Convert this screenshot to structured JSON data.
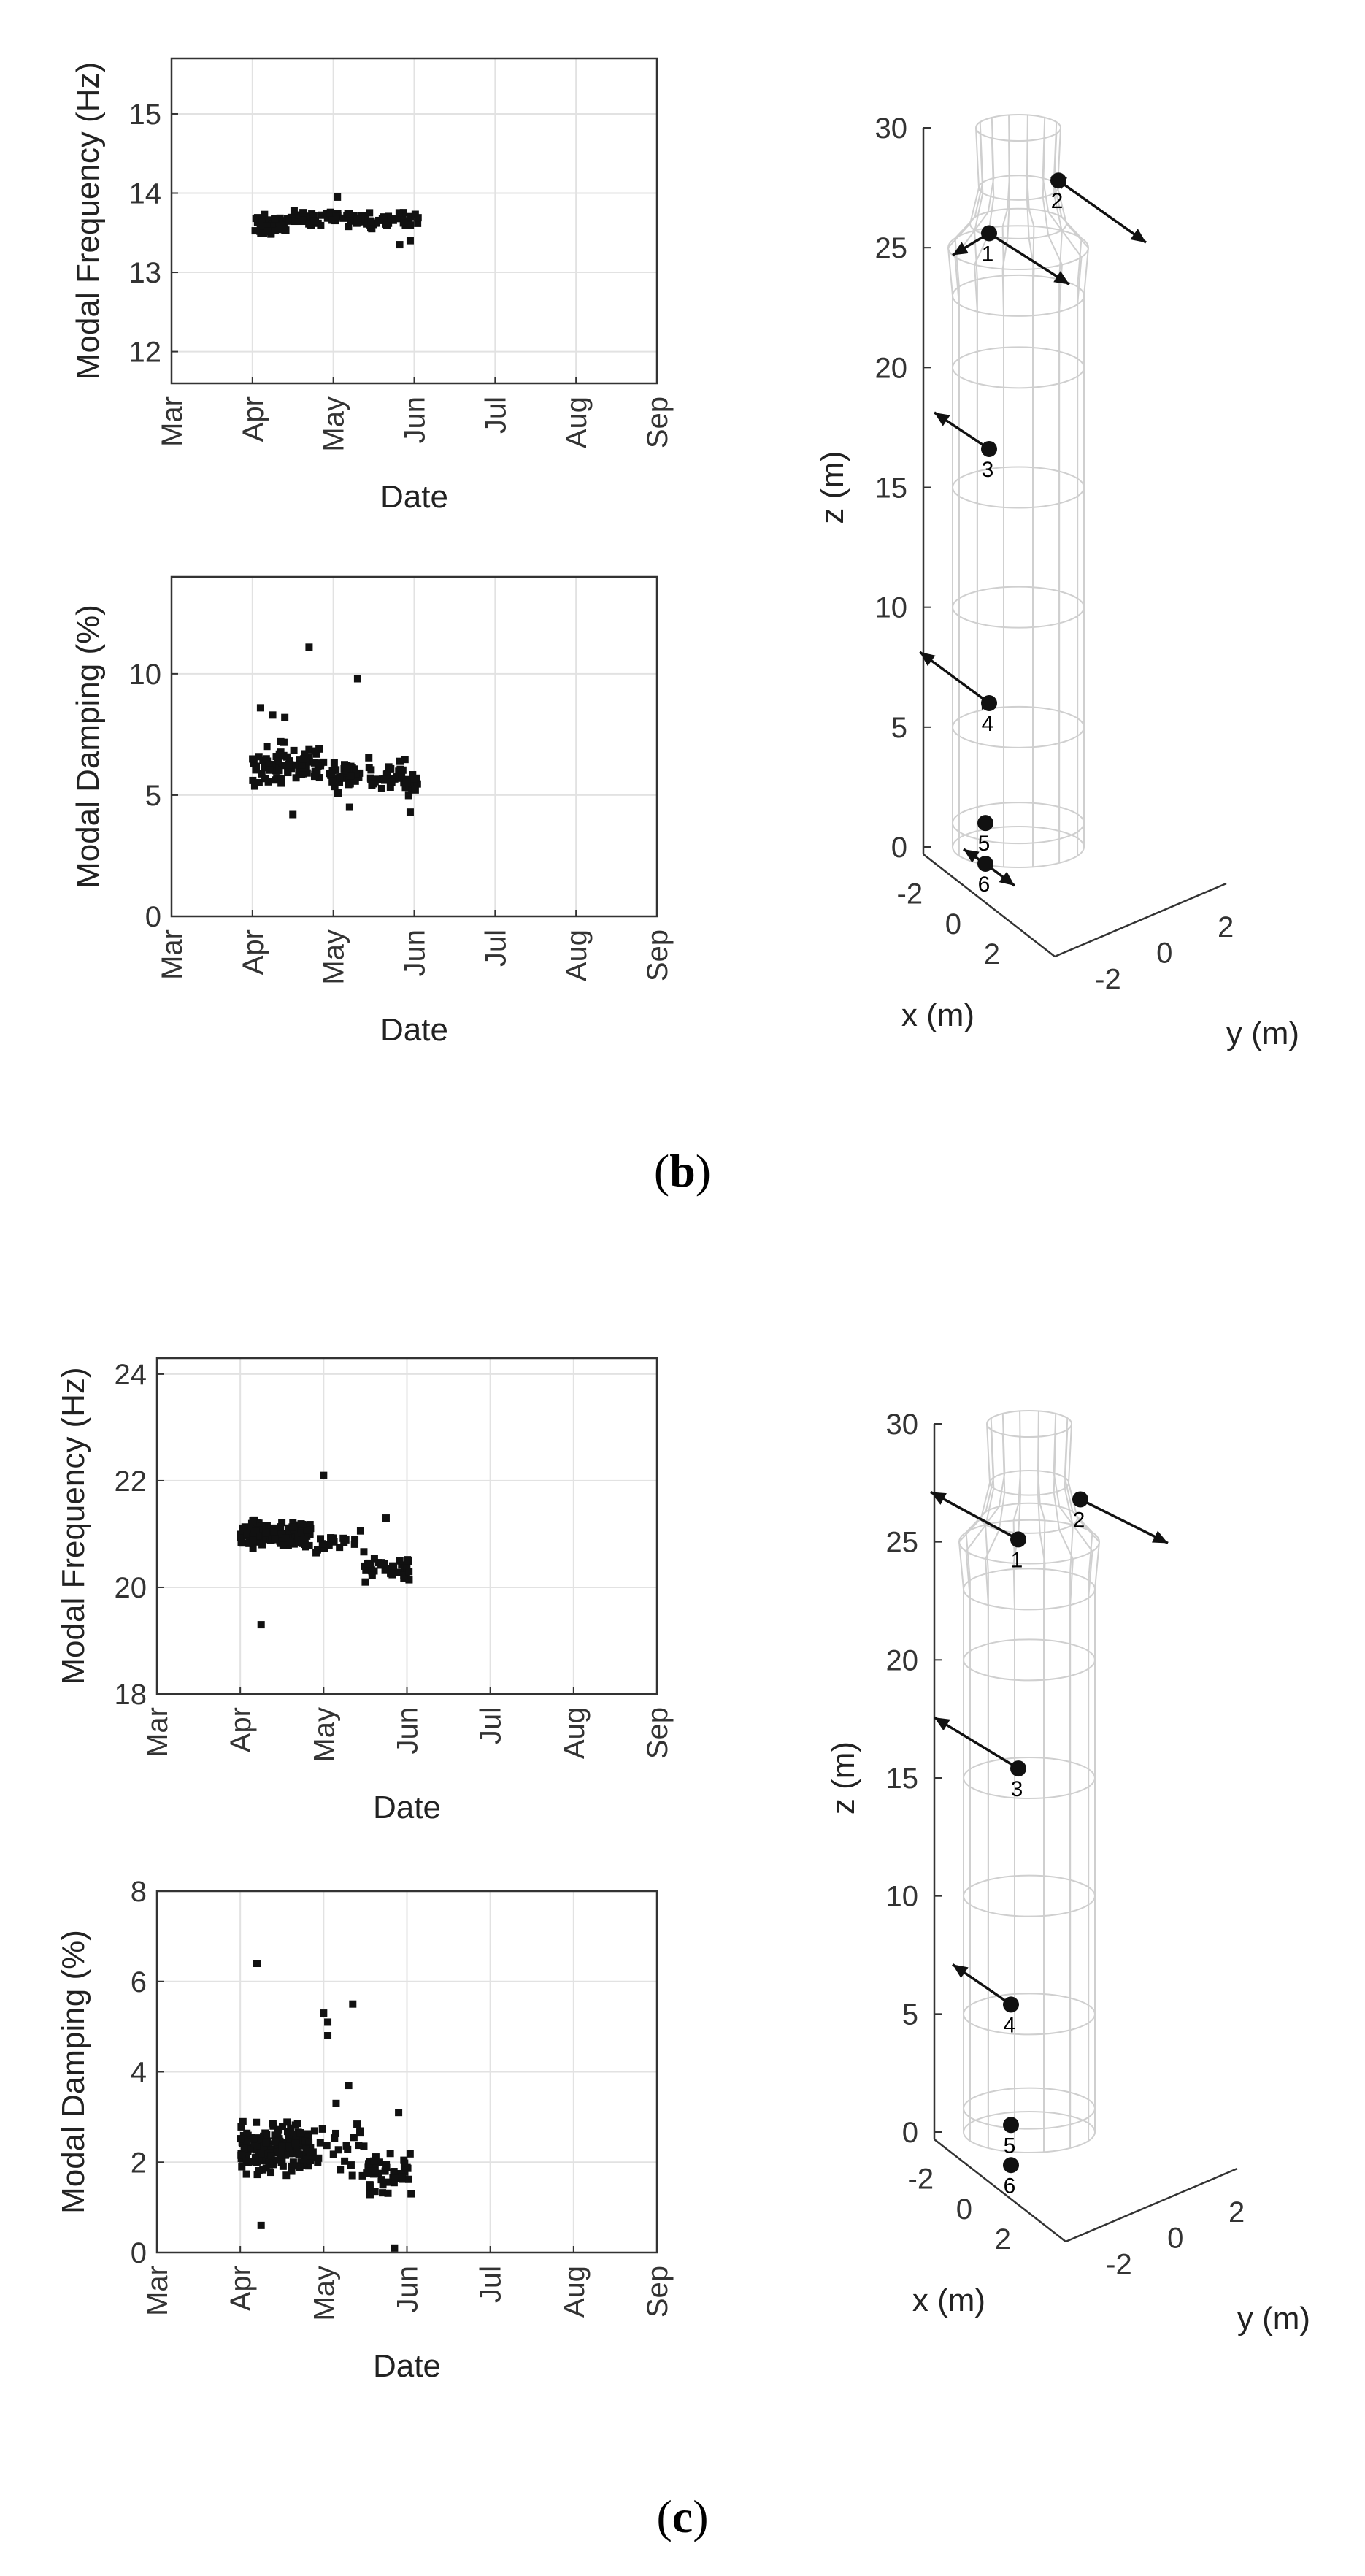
{
  "panels": [
    {
      "label_open": "(",
      "label_letter": "b",
      "label_close": ")",
      "frequency_chart": {
        "type": "scatter",
        "xlabel": "Date",
        "ylabel": "Modal Frequency (Hz)",
        "x_ticks": [
          "Mar",
          "Apr",
          "May",
          "Jun",
          "Jul",
          "Aug",
          "Sep"
        ],
        "y_ticks": [
          "12",
          "13",
          "14",
          "15"
        ],
        "xlim_months": [
          0,
          6
        ],
        "ylim": [
          11.6,
          15.7
        ],
        "grid": true,
        "clusters": [
          {
            "x_range": [
              1.0,
              1.45
            ],
            "y_center": 13.6,
            "y_spread": 0.12,
            "count": 55
          },
          {
            "x_range": [
              1.45,
              2.1
            ],
            "y_center": 13.68,
            "y_spread": 0.1,
            "count": 40
          },
          {
            "x_range": [
              2.1,
              3.05
            ],
            "y_center": 13.66,
            "y_spread": 0.11,
            "count": 55
          }
        ],
        "points": [
          [
            2.05,
            13.95
          ],
          [
            2.95,
            13.4
          ],
          [
            2.82,
            13.35
          ]
        ]
      },
      "damping_chart": {
        "type": "scatter",
        "xlabel": "Date",
        "ylabel": "Modal Damping (%)",
        "x_ticks": [
          "Mar",
          "Apr",
          "May",
          "Jun",
          "Jul",
          "Aug",
          "Sep"
        ],
        "y_ticks": [
          "0",
          "5",
          "10"
        ],
        "xlim_months": [
          0,
          6
        ],
        "ylim": [
          0,
          14
        ],
        "grid": true,
        "clusters": [
          {
            "x_range": [
              1.0,
              1.9
            ],
            "y_center": 6.2,
            "y_spread": 0.9,
            "count": 80
          },
          {
            "x_range": [
              1.9,
              2.9
            ],
            "y_center": 5.9,
            "y_spread": 0.6,
            "count": 70
          },
          {
            "x_range": [
              2.9,
              3.05
            ],
            "y_center": 5.4,
            "y_spread": 0.5,
            "count": 12
          }
        ],
        "points": [
          [
            1.7,
            11.1
          ],
          [
            2.3,
            9.8
          ],
          [
            1.1,
            8.6
          ],
          [
            1.25,
            8.3
          ],
          [
            1.4,
            8.2
          ],
          [
            1.35,
            7.2
          ],
          [
            1.5,
            4.2
          ],
          [
            2.2,
            4.5
          ],
          [
            2.95,
            4.3
          ]
        ]
      },
      "mode_shape": {
        "z_axis_label": "z (m)",
        "x_axis_label": "x (m)",
        "y_axis_label": "y (m)",
        "z_ticks": [
          "0",
          "5",
          "10",
          "15",
          "20",
          "25",
          "30"
        ],
        "x_ticks": [
          "-2",
          "0",
          "2"
        ],
        "y_ticks": [
          "-2",
          "0",
          "2"
        ],
        "node_labels": [
          "1",
          "2",
          "3",
          "4",
          "5",
          "6"
        ]
      }
    },
    {
      "label_open": "(",
      "label_letter": "c",
      "label_close": ")",
      "frequency_chart": {
        "type": "scatter",
        "xlabel": "Date",
        "ylabel": "Modal Frequency (Hz)",
        "x_ticks": [
          "Mar",
          "Apr",
          "May",
          "Jun",
          "Jul",
          "Aug",
          "Sep"
        ],
        "y_ticks": [
          "18",
          "20",
          "22",
          "24"
        ],
        "xlim_months": [
          0,
          6
        ],
        "ylim": [
          18,
          24.3
        ],
        "grid": true,
        "clusters": [
          {
            "x_range": [
              1.0,
              1.85
            ],
            "y_center": 21.0,
            "y_spread": 0.22,
            "count": 150
          },
          {
            "x_range": [
              1.9,
              2.45
            ],
            "y_center": 20.9,
            "y_spread": 0.35,
            "count": 18
          },
          {
            "x_range": [
              2.45,
              3.05
            ],
            "y_center": 20.4,
            "y_spread": 0.25,
            "count": 40
          }
        ],
        "points": [
          [
            2.0,
            22.1
          ],
          [
            1.25,
            19.3
          ],
          [
            2.5,
            20.1
          ],
          [
            2.75,
            21.3
          ],
          [
            3.0,
            20.5
          ]
        ]
      },
      "damping_chart": {
        "type": "scatter",
        "xlabel": "Date",
        "ylabel": "Modal Damping (%)",
        "x_ticks": [
          "Mar",
          "Apr",
          "May",
          "Jun",
          "Jul",
          "Aug",
          "Sep"
        ],
        "y_ticks": [
          "0",
          "2",
          "4",
          "6",
          "8"
        ],
        "xlim_months": [
          0,
          6
        ],
        "ylim": [
          0,
          8
        ],
        "grid": true,
        "clusters": [
          {
            "x_range": [
              1.0,
              1.85
            ],
            "y_center": 2.3,
            "y_spread": 0.55,
            "count": 190
          },
          {
            "x_range": [
              1.85,
              2.5
            ],
            "y_center": 2.3,
            "y_spread": 0.8,
            "count": 25
          },
          {
            "x_range": [
              2.5,
              3.05
            ],
            "y_center": 1.8,
            "y_spread": 0.5,
            "count": 45
          }
        ],
        "points": [
          [
            1.2,
            6.4
          ],
          [
            2.0,
            5.3
          ],
          [
            2.35,
            5.5
          ],
          [
            2.05,
            4.8
          ],
          [
            2.3,
            3.7
          ],
          [
            2.15,
            3.3
          ],
          [
            1.25,
            0.6
          ],
          [
            2.85,
            0.1
          ],
          [
            3.05,
            1.3
          ],
          [
            2.05,
            5.1
          ],
          [
            2.9,
            3.1
          ]
        ]
      },
      "mode_shape": {
        "z_axis_label": "z (m)",
        "x_axis_label": "x (m)",
        "y_axis_label": "y (m)",
        "z_ticks": [
          "0",
          "5",
          "10",
          "15",
          "20",
          "25",
          "30"
        ],
        "x_ticks": [
          "-2",
          "0",
          "2"
        ],
        "y_ticks": [
          "-2",
          "0",
          "2"
        ],
        "node_labels": [
          "1",
          "2",
          "3",
          "4",
          "5",
          "6"
        ]
      }
    }
  ]
}
